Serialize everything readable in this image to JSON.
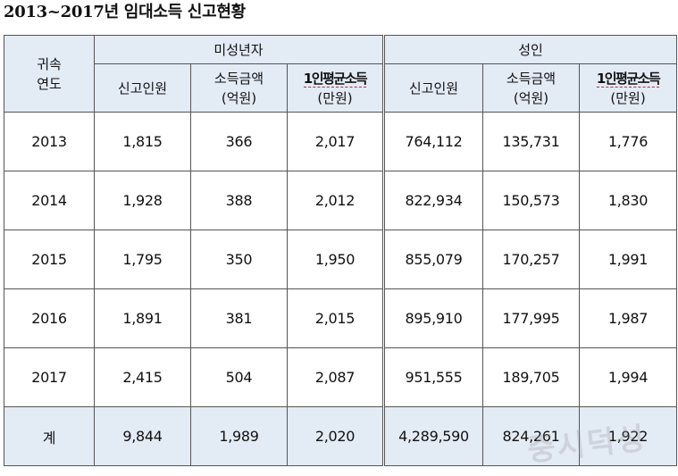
{
  "title": "2013~2017년  임대소득  신고현황",
  "header": {
    "year_col": [
      "귀속",
      "연도"
    ],
    "groups": [
      "미성년자",
      "성인"
    ],
    "columns": [
      {
        "line1": "신고인원",
        "line2": ""
      },
      {
        "line1": "소득금액",
        "line2": "(억원)"
      },
      {
        "line1": "1인평균소득",
        "line2": "(만원)"
      },
      {
        "line1": "신고인원",
        "line2": ""
      },
      {
        "line1": "소득금액",
        "line2": "(억원)"
      },
      {
        "line1": "1인평균소득",
        "line2": "(만원)"
      }
    ]
  },
  "rows": [
    {
      "year": "2013",
      "cells": [
        "1,815",
        "366",
        "2,017",
        "764,112",
        "135,731",
        "1,776"
      ]
    },
    {
      "year": "2014",
      "cells": [
        "1,928",
        "388",
        "2,012",
        "822,934",
        "150,573",
        "1,830"
      ]
    },
    {
      "year": "2015",
      "cells": [
        "1,795",
        "350",
        "1,950",
        "855,079",
        "170,257",
        "1,991"
      ]
    },
    {
      "year": "2016",
      "cells": [
        "1,891",
        "381",
        "2,015",
        "895,910",
        "177,995",
        "1,987"
      ]
    },
    {
      "year": "2017",
      "cells": [
        "2,415",
        "504",
        "2,087",
        "951,555",
        "189,705",
        "1,994"
      ]
    }
  ],
  "total": {
    "label": "계",
    "cells": [
      "9,844",
      "1,989",
      "2,020",
      "4,289,590",
      "824,261",
      "1,922"
    ]
  },
  "watermark": "중시덕성",
  "colors": {
    "header_bg": "#e3ebf5",
    "border": "#555555",
    "dotted_underline": "#b03030"
  }
}
